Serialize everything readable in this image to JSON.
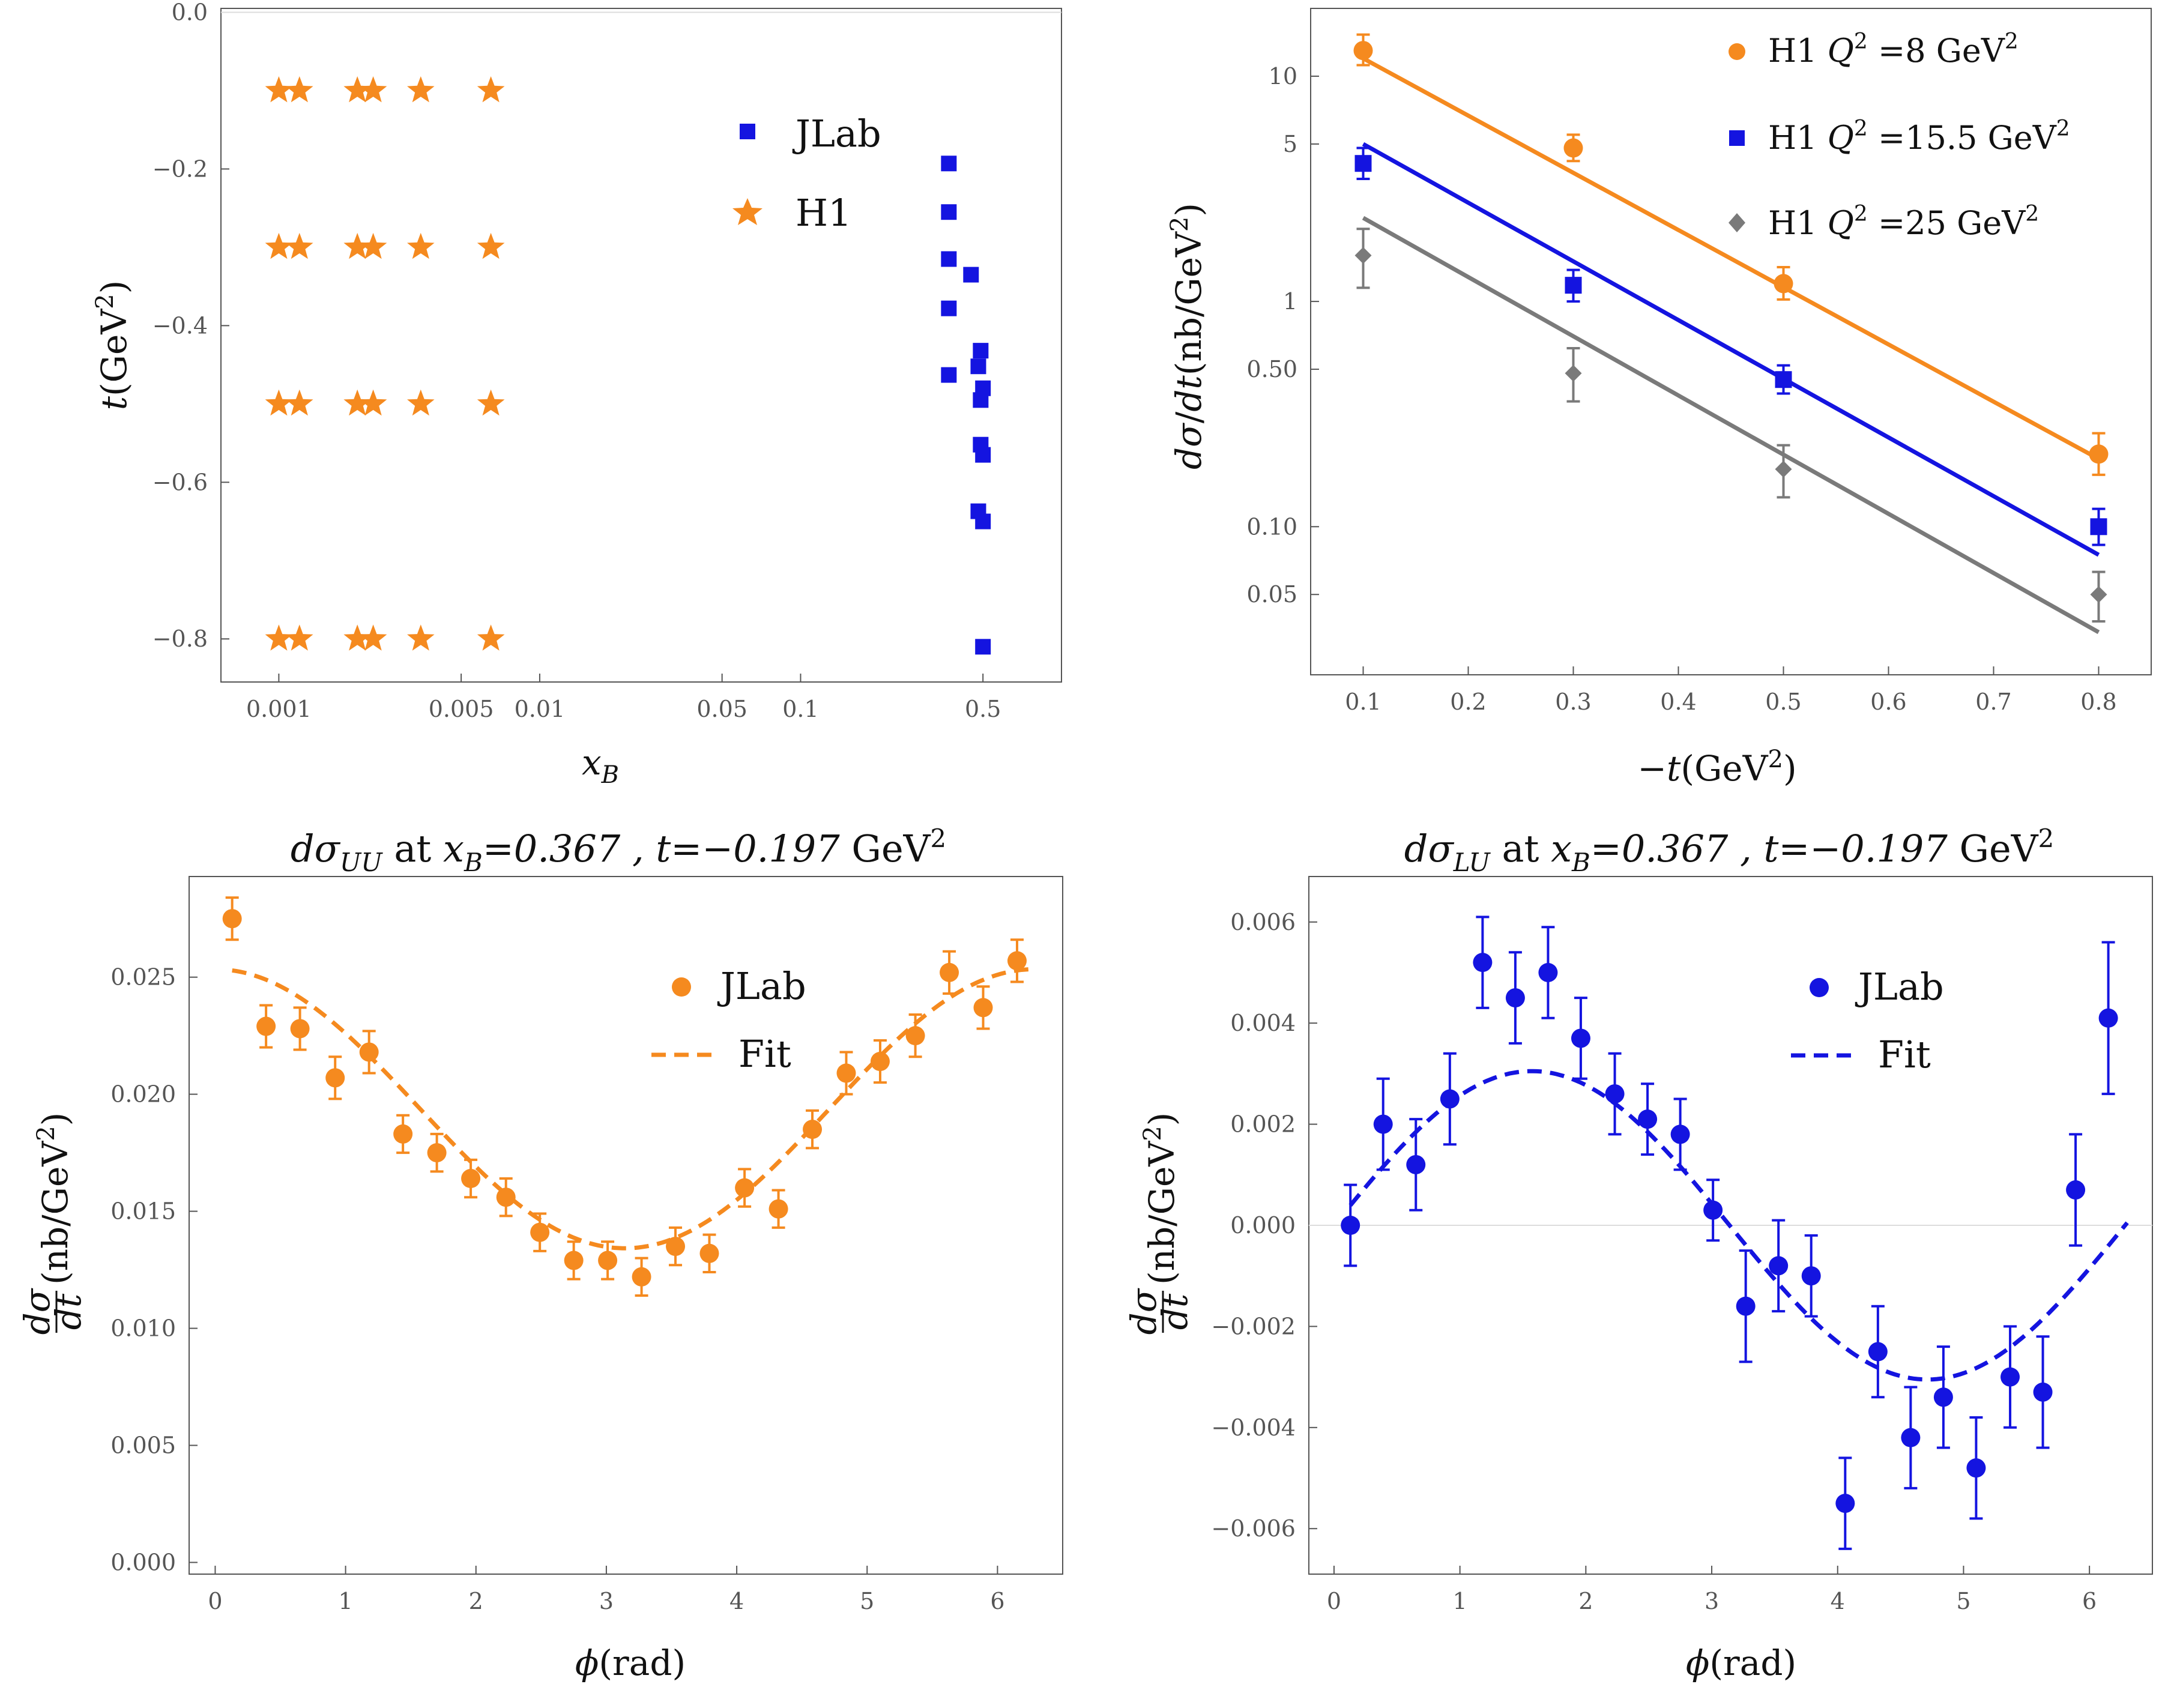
{
  "chart_data": [
    {
      "id": "p1",
      "type": "scatter",
      "xscale": "log",
      "xlim": [
        0.0006,
        1.0
      ],
      "ylim": [
        -0.855,
        0.005
      ],
      "xlabel": "x_B",
      "ylabel": "t(GeV²)",
      "xticks": [
        0.001,
        0.005,
        0.01,
        0.05,
        0.1,
        0.5
      ],
      "xtick_labels": [
        "0.001",
        "0.005",
        "0.01",
        "0.05",
        "0.1",
        "0.5"
      ],
      "yticks": [
        0.0,
        -0.2,
        -0.4,
        -0.6,
        -0.8
      ],
      "ytick_labels": [
        "0.0",
        "−0.2",
        "−0.4",
        "−0.6",
        "−0.8"
      ],
      "legend": {
        "position": "top-right",
        "entries": [
          "JLab",
          "H1"
        ]
      },
      "series": [
        {
          "name": "JLab",
          "color": "#1414e0",
          "marker": "square",
          "x": [
            0.37,
            0.37,
            0.37,
            0.37,
            0.37,
            0.45,
            0.49,
            0.48,
            0.5,
            0.49,
            0.49,
            0.5,
            0.48,
            0.5,
            0.5
          ],
          "y": [
            -0.193,
            -0.255,
            -0.315,
            -0.378,
            -0.463,
            -0.335,
            -0.432,
            -0.452,
            -0.48,
            -0.495,
            -0.552,
            -0.565,
            -0.637,
            -0.65,
            -0.81
          ]
        },
        {
          "name": "H1",
          "color": "#f58a1f",
          "marker": "star",
          "x": [
            0.001,
            0.0012,
            0.002,
            0.0023,
            0.0035,
            0.0065,
            0.001,
            0.0012,
            0.002,
            0.0023,
            0.0035,
            0.0065,
            0.001,
            0.0012,
            0.002,
            0.0023,
            0.0035,
            0.0065,
            0.001,
            0.0012,
            0.002,
            0.0023,
            0.0035,
            0.0065
          ],
          "y": [
            -0.1,
            -0.1,
            -0.1,
            -0.1,
            -0.1,
            -0.1,
            -0.3,
            -0.3,
            -0.3,
            -0.3,
            -0.3,
            -0.3,
            -0.5,
            -0.5,
            -0.5,
            -0.5,
            -0.5,
            -0.5,
            -0.8,
            -0.8,
            -0.8,
            -0.8,
            -0.8,
            -0.8
          ]
        }
      ]
    },
    {
      "id": "p2",
      "type": "scatter",
      "yscale": "log",
      "xlim": [
        0.05,
        0.85
      ],
      "ylim": [
        0.022,
        20
      ],
      "xlabel": "−t(GeV²)",
      "ylabel": "dσ/dt(nb/GeV²)",
      "xticks": [
        0.1,
        0.2,
        0.3,
        0.4,
        0.5,
        0.6,
        0.7,
        0.8
      ],
      "xtick_labels": [
        "0.1",
        "0.2",
        "0.3",
        "0.4",
        "0.5",
        "0.6",
        "0.7",
        "0.8"
      ],
      "yticks": [
        0.05,
        0.1,
        0.5,
        1,
        5,
        10
      ],
      "ytick_labels": [
        "0.05",
        "0.10",
        "0.50",
        "1",
        "5",
        "10"
      ],
      "legend": {
        "position": "top-right"
      },
      "series": [
        {
          "name": "H1 Q² =8 GeV²",
          "label_parts": [
            "H1 ",
            "Q",
            "2",
            " =8 GeV",
            "2"
          ],
          "color": "#f58a1f",
          "marker": "circle",
          "x": [
            0.1,
            0.3,
            0.5,
            0.8
          ],
          "y": [
            13.0,
            4.8,
            1.2,
            0.21
          ],
          "err_lo": [
            11.2,
            4.2,
            1.02,
            0.17
          ],
          "err_hi": [
            15.3,
            5.5,
            1.42,
            0.26
          ],
          "fit_x": [
            0.1,
            0.8
          ],
          "fit_y": [
            12.0,
            0.2
          ]
        },
        {
          "name": "H1 Q² =15.5 GeV²",
          "label_parts": [
            "H1 ",
            "Q",
            "2",
            " =15.5 GeV",
            "2"
          ],
          "color": "#1414e0",
          "marker": "square",
          "x": [
            0.1,
            0.3,
            0.5,
            0.8
          ],
          "y": [
            4.1,
            1.18,
            0.45,
            0.1
          ],
          "err_lo": [
            3.5,
            1.0,
            0.39,
            0.083
          ],
          "err_hi": [
            4.8,
            1.38,
            0.52,
            0.12
          ],
          "fit_x": [
            0.1,
            0.8
          ],
          "fit_y": [
            5.0,
            0.075
          ]
        },
        {
          "name": "H1 Q² =25 GeV²",
          "label_parts": [
            "H1 ",
            "Q",
            "2",
            " =25 GeV",
            "2"
          ],
          "color": "#7a7a7a",
          "marker": "diamond",
          "x": [
            0.1,
            0.3,
            0.5,
            0.8
          ],
          "y": [
            1.6,
            0.48,
            0.18,
            0.05
          ],
          "err_lo": [
            1.15,
            0.36,
            0.135,
            0.038
          ],
          "err_hi": [
            2.1,
            0.62,
            0.23,
            0.063
          ],
          "fit_x": [
            0.1,
            0.8
          ],
          "fit_y": [
            2.35,
            0.034
          ]
        }
      ]
    },
    {
      "id": "p3",
      "type": "scatter",
      "title_parts": [
        "dσ",
        "UU",
        " at ",
        "x",
        "B",
        "=0.367 , ",
        "t=−0.197",
        " GeV",
        "2"
      ],
      "xlim": [
        -0.2,
        6.5
      ],
      "ylim": [
        -0.0005,
        0.0293
      ],
      "xlabel": "ϕ(rad)",
      "ylabel": "dσ/dt(nb/GeV²)",
      "xticks": [
        0,
        1,
        2,
        3,
        4,
        5,
        6
      ],
      "xtick_labels": [
        "0",
        "1",
        "2",
        "3",
        "4",
        "5",
        "6"
      ],
      "yticks": [
        0.0,
        0.005,
        0.01,
        0.015,
        0.02,
        0.025
      ],
      "ytick_labels": [
        "0.000",
        "0.005",
        "0.010",
        "0.015",
        "0.020",
        "0.025"
      ],
      "legend": {
        "position": "top-right",
        "entries": [
          "JLab",
          "Fit"
        ]
      },
      "series": [
        {
          "name": "JLab",
          "color": "#f58a1f",
          "marker": "circle",
          "x": [
            0.13,
            0.39,
            0.65,
            0.92,
            1.18,
            1.44,
            1.7,
            1.96,
            2.23,
            2.49,
            2.75,
            3.01,
            3.27,
            3.53,
            3.79,
            4.06,
            4.32,
            4.58,
            4.84,
            5.1,
            5.37,
            5.63,
            5.89,
            6.15
          ],
          "y": [
            0.0275,
            0.0229,
            0.0228,
            0.0207,
            0.0218,
            0.0183,
            0.0175,
            0.0164,
            0.0156,
            0.0141,
            0.0129,
            0.0129,
            0.0122,
            0.0135,
            0.0132,
            0.016,
            0.0151,
            0.0185,
            0.0209,
            0.0214,
            0.0225,
            0.0252,
            0.0237,
            0.0257
          ],
          "err": [
            0.0009,
            0.0009,
            0.0009,
            0.0009,
            0.0009,
            0.0008,
            0.0008,
            0.0008,
            0.0008,
            0.0008,
            0.0008,
            0.0008,
            0.0008,
            0.0008,
            0.0008,
            0.0008,
            0.0008,
            0.0008,
            0.0009,
            0.0009,
            0.0009,
            0.0009,
            0.0009,
            0.0009
          ]
        },
        {
          "name": "Fit",
          "color": "#f58a1f",
          "style": "dashed",
          "model": {
            "a": 0.01938,
            "b": 0.00596,
            "c": 0.0
          }
        }
      ]
    },
    {
      "id": "p4",
      "type": "scatter",
      "title_parts": [
        "dσ",
        "LU",
        " at ",
        "x",
        "B",
        "=0.367 , ",
        "t=−0.197",
        " GeV",
        "2"
      ],
      "xlim": [
        -0.2,
        6.5
      ],
      "ylim": [
        -0.0069,
        0.0069
      ],
      "xlabel": "ϕ(rad)",
      "ylabel": "dσ/dt(nb/GeV²)",
      "xticks": [
        0,
        1,
        2,
        3,
        4,
        5,
        6
      ],
      "xtick_labels": [
        "0",
        "1",
        "2",
        "3",
        "4",
        "5",
        "6"
      ],
      "yticks": [
        -0.006,
        -0.004,
        -0.002,
        0.0,
        0.002,
        0.004,
        0.006
      ],
      "ytick_labels": [
        "−0.006",
        "−0.004",
        "−0.002",
        "0.000",
        "0.002",
        "0.004",
        "0.006"
      ],
      "legend": {
        "position": "top-right",
        "entries": [
          "JLab",
          "Fit"
        ]
      },
      "series": [
        {
          "name": "JLab",
          "color": "#1414e0",
          "marker": "circle",
          "x": [
            0.13,
            0.39,
            0.65,
            0.92,
            1.18,
            1.44,
            1.7,
            1.96,
            2.23,
            2.49,
            2.75,
            3.01,
            3.27,
            3.53,
            3.79,
            4.06,
            4.32,
            4.58,
            4.84,
            5.1,
            5.37,
            5.63,
            5.89,
            6.15
          ],
          "y": [
            0.0,
            0.002,
            0.0012,
            0.0025,
            0.0052,
            0.0045,
            0.005,
            0.0037,
            0.0026,
            0.0021,
            0.0018,
            0.0003,
            -0.0016,
            -0.0008,
            -0.001,
            -0.0055,
            -0.0025,
            -0.0042,
            -0.0034,
            -0.0048,
            -0.003,
            -0.0033,
            0.0007,
            0.0041
          ],
          "err": [
            0.0008,
            0.0009,
            0.0009,
            0.0009,
            0.0009,
            0.0009,
            0.0009,
            0.0008,
            0.0008,
            0.0007,
            0.0007,
            0.0006,
            0.0011,
            0.0009,
            0.0008,
            0.0009,
            0.0009,
            0.001,
            0.001,
            0.001,
            0.001,
            0.0011,
            0.0011,
            0.0015
          ]
        },
        {
          "name": "Fit",
          "color": "#1414e0",
          "style": "dashed",
          "model": {
            "a": 0.0,
            "b": 0.0,
            "c": 0.00305
          }
        }
      ]
    }
  ]
}
